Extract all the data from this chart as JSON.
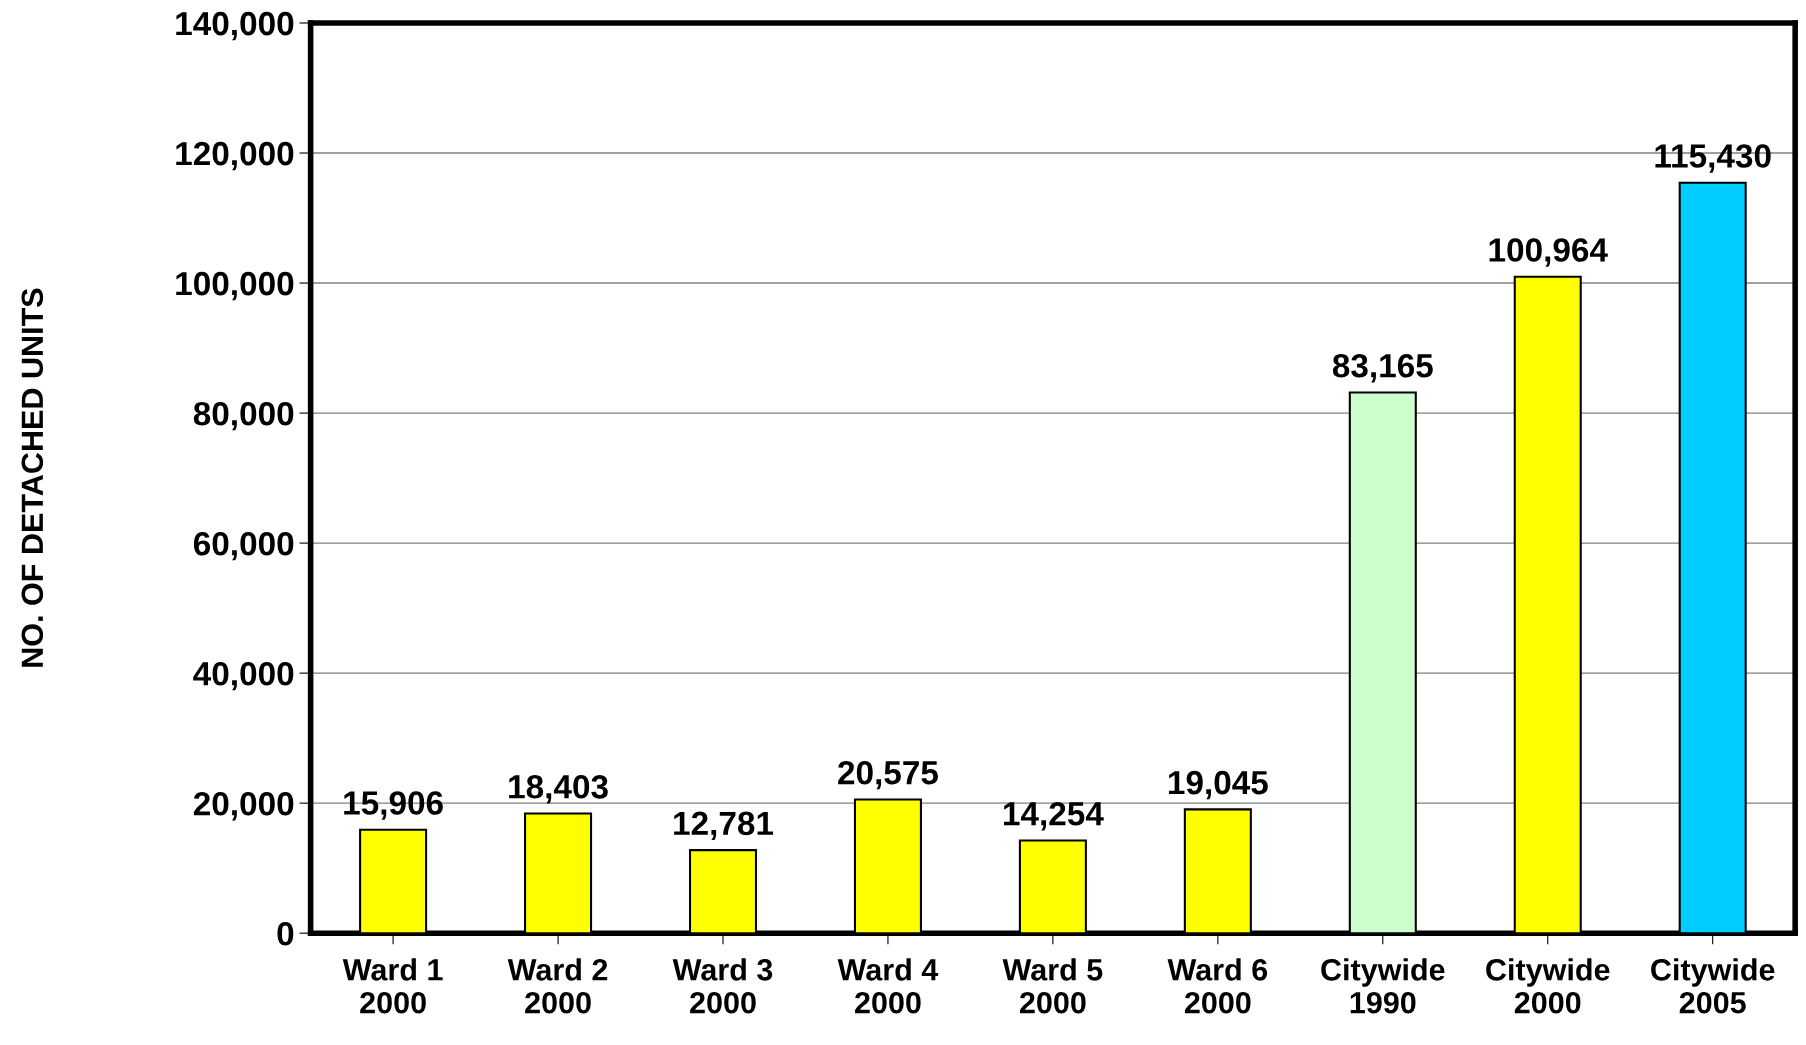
{
  "chart_data": {
    "type": "bar",
    "ylabel": "NO. OF DETACHED UNITS",
    "categories": [
      "Ward 1\n2000",
      "Ward 2\n2000",
      "Ward 3\n2000",
      "Ward 4\n2000",
      "Ward 5\n2000",
      "Ward 6\n2000",
      "Citywide\n1990",
      "Citywide\n2000",
      "Citywide\n2005"
    ],
    "values": [
      15906,
      18403,
      12781,
      20575,
      14254,
      19045,
      83165,
      100964,
      115430
    ],
    "colors": [
      "#ffff00",
      "#ffff00",
      "#ffff00",
      "#ffff00",
      "#ffff00",
      "#ffff00",
      "#ccffcc",
      "#ffff00",
      "#00ccff"
    ],
    "ylim": [
      0,
      140000
    ],
    "yticks": [
      {
        "value": 0,
        "label": "0"
      },
      {
        "value": 20000,
        "label": "20,000"
      },
      {
        "value": 40000,
        "label": "40,000"
      },
      {
        "value": 60000,
        "label": "60,000"
      },
      {
        "value": 80000,
        "label": "80,000"
      },
      {
        "value": 100000,
        "label": "100,000"
      },
      {
        "value": 120000,
        "label": "120,000"
      },
      {
        "value": 140000,
        "label": "140,000"
      }
    ],
    "value_labels": [
      "15,906",
      "18,403",
      "12,781",
      "20,575",
      "14,254",
      "19,045",
      "83,165",
      "100,964",
      "115,430"
    ],
    "grid": "y",
    "legend": false
  }
}
